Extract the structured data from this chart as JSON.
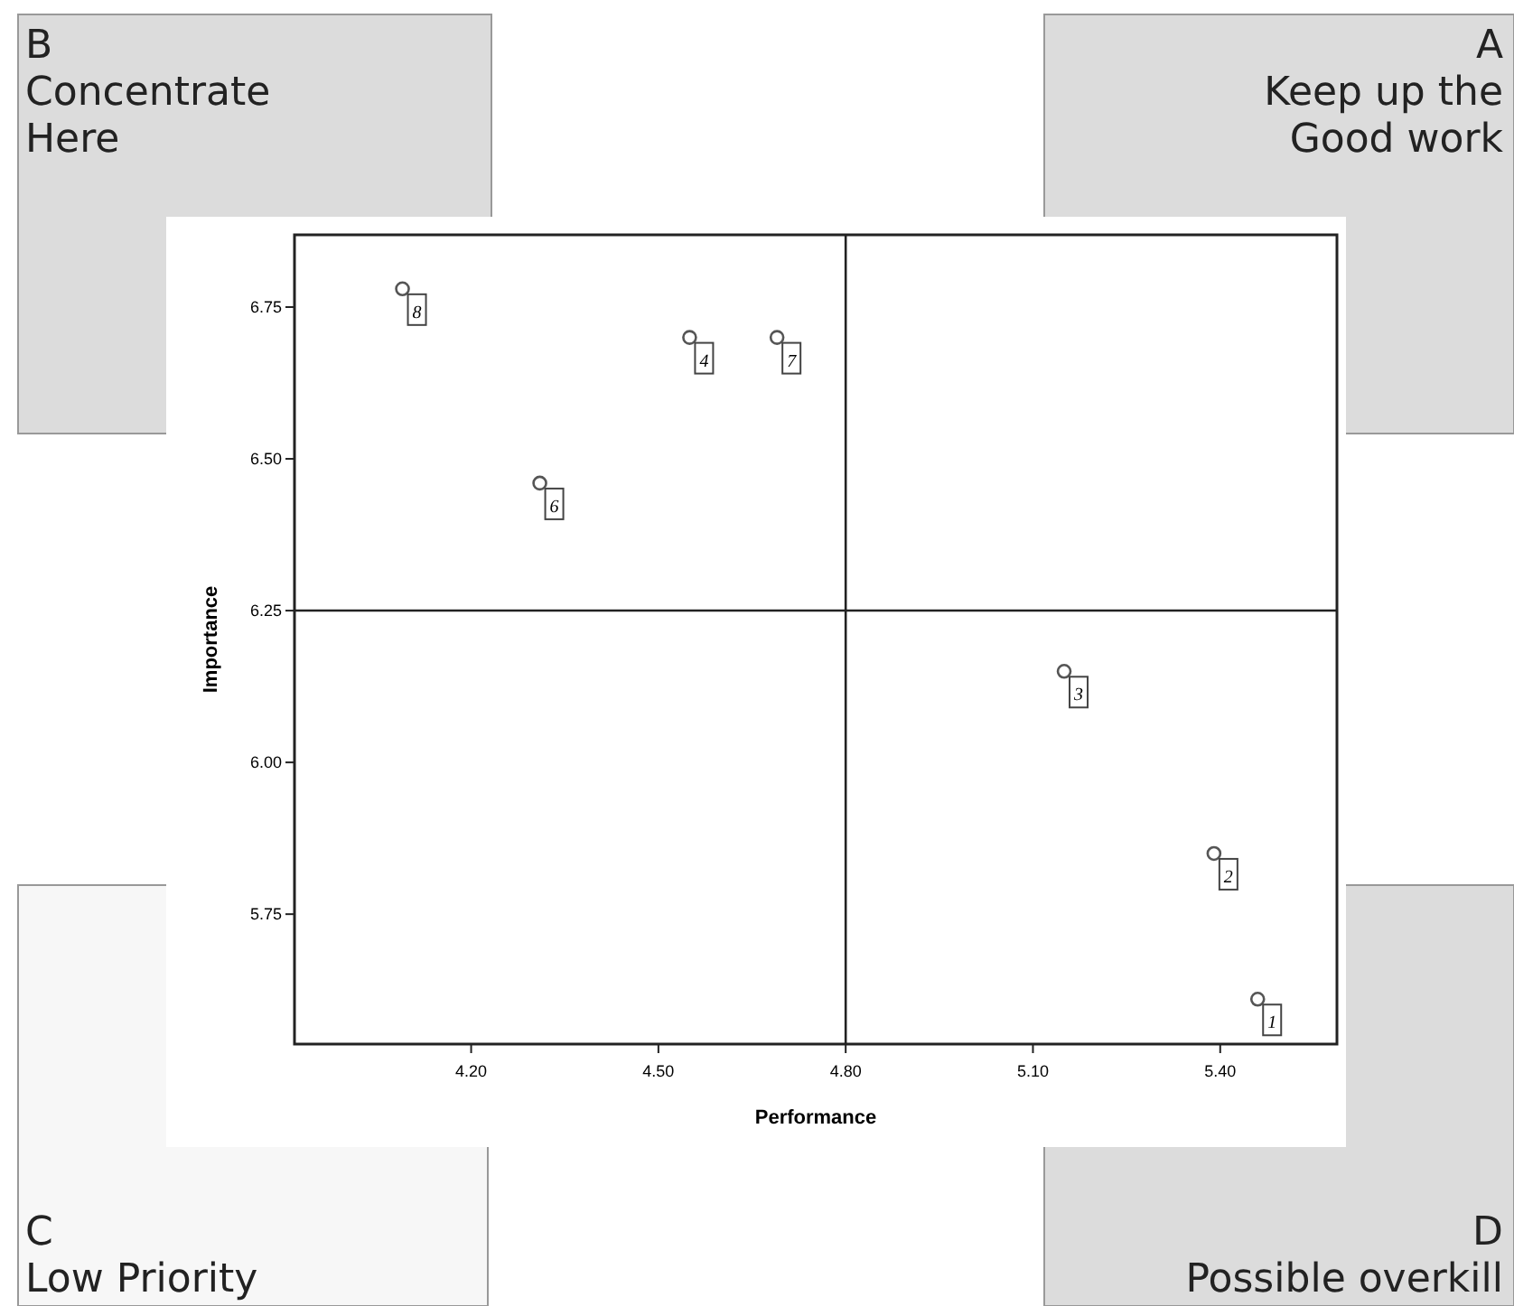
{
  "chart_data": {
    "type": "scatter",
    "xlabel": "Performance",
    "ylabel": "Importance",
    "x": [
      4.09,
      4.55,
      4.69,
      4.31,
      5.15,
      5.39,
      5.46
    ],
    "values": [
      6.78,
      6.7,
      6.7,
      6.46,
      6.15,
      5.85,
      5.61
    ],
    "color": "#555555",
    "marker": "circle",
    "xlim": [
      3.917,
      5.587
    ],
    "ylim": [
      5.536,
      6.869
    ],
    "xticks": [
      {
        "value": 4.2,
        "label": "4.20"
      },
      {
        "value": 4.5,
        "label": "4.50"
      },
      {
        "value": 4.8,
        "label": "4.80"
      },
      {
        "value": 5.1,
        "label": "5.10"
      },
      {
        "value": 5.4,
        "label": "5.40"
      }
    ],
    "yticks": [
      {
        "value": 5.75,
        "label": "5.75"
      },
      {
        "value": 6,
        "label": "6.00"
      },
      {
        "value": 6.25,
        "label": "6.25"
      },
      {
        "value": 6.5,
        "label": "6.50"
      },
      {
        "value": 6.75,
        "label": "6.75"
      }
    ],
    "grid": false,
    "ref_lines": [
      {
        "axis": "x",
        "value": 4.8,
        "color": "#222222"
      },
      {
        "axis": "y",
        "value": 6.25,
        "color": "#222222"
      }
    ],
    "annotations": [
      "B\nConcentrate\nHere",
      "A\nKeep up the\nGood work",
      "C\nLow Priority",
      "D\nPossible overkill",
      {
        "text": "8",
        "x": 4.09,
        "y": 6.78
      },
      {
        "text": "4",
        "x": 4.55,
        "y": 6.7
      },
      {
        "text": "7",
        "x": 4.69,
        "y": 6.7
      },
      {
        "text": "6",
        "x": 4.31,
        "y": 6.46
      },
      {
        "text": "3",
        "x": 5.15,
        "y": 6.15
      },
      {
        "text": "2",
        "x": 5.39,
        "y": 5.85
      },
      {
        "text": "1",
        "x": 5.46,
        "y": 5.61
      }
    ]
  }
}
